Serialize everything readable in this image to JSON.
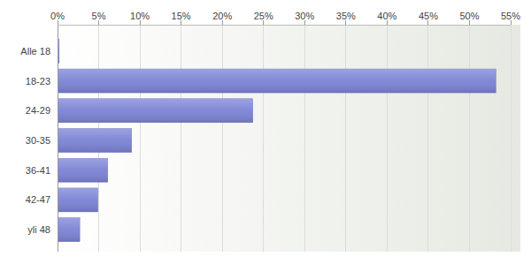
{
  "chart_data": {
    "type": "bar",
    "orientation": "horizontal",
    "categories": [
      "Alle 18",
      "18-23",
      "24-29",
      "30-35",
      "36-41",
      "42-47",
      "yli 48"
    ],
    "values": [
      0.2,
      53.2,
      23.7,
      9.0,
      6.1,
      4.9,
      2.7
    ],
    "color": "#7b83d4",
    "xlim": [
      0,
      55
    ],
    "xticks": [
      {
        "value": 0,
        "label": "0%"
      },
      {
        "value": 5,
        "label": "5%"
      },
      {
        "value": 10,
        "label": "10%"
      },
      {
        "value": 15,
        "label": "15%"
      },
      {
        "value": 20,
        "label": "20%"
      },
      {
        "value": 25,
        "label": "25%"
      },
      {
        "value": 30,
        "label": "30%"
      },
      {
        "value": 35,
        "label": "35%"
      },
      {
        "value": 40,
        "label": "40%"
      },
      {
        "value": 45,
        "label": "45%"
      },
      {
        "value": 50,
        "label": "50%"
      },
      {
        "value": 55,
        "label": "55%"
      }
    ],
    "grid": true
  }
}
